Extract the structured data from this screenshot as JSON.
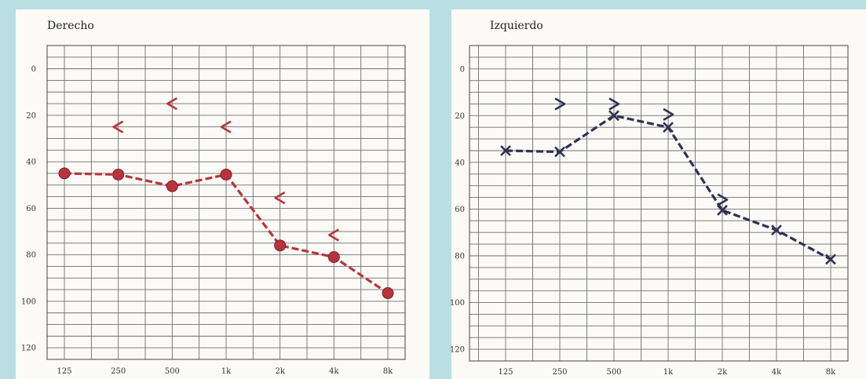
{
  "colors": {
    "background": "#b9dfe2",
    "paper": "#fbfaf7",
    "right_ear": "#b8343d",
    "left_ear": "#2f3252"
  },
  "chart_data": [
    {
      "type": "line",
      "title": "Derecho",
      "categories": [
        "125",
        "250",
        "500",
        "1k",
        "2k",
        "4k",
        "8k"
      ],
      "yticks": [
        "0",
        "20",
        "40",
        "60",
        "80",
        "100",
        "120"
      ],
      "ylim": [
        -10,
        125
      ],
      "y_inverted": true,
      "grid": true,
      "series": [
        {
          "marker": "circle",
          "values": [
            45,
            45.5,
            50.5,
            45.5,
            76,
            81,
            96.5
          ]
        },
        {
          "marker": "less-than",
          "values": [
            null,
            25,
            15,
            25,
            55.5,
            71.5,
            null
          ]
        }
      ]
    },
    {
      "type": "line",
      "title": "Izquierdo",
      "categories": [
        "125",
        "250",
        "500",
        "1k",
        "2k",
        "4k",
        "8k"
      ],
      "yticks": [
        "0",
        "20",
        "40",
        "60",
        "80",
        "100",
        "120"
      ],
      "ylim": [
        -10,
        125
      ],
      "y_inverted": true,
      "grid": true,
      "series": [
        {
          "marker": "cross",
          "values": [
            35,
            35.5,
            20,
            25,
            60.5,
            69,
            81.5
          ]
        },
        {
          "marker": "greater-than",
          "values": [
            null,
            15,
            15,
            19.5,
            56,
            null,
            null
          ]
        }
      ]
    }
  ]
}
